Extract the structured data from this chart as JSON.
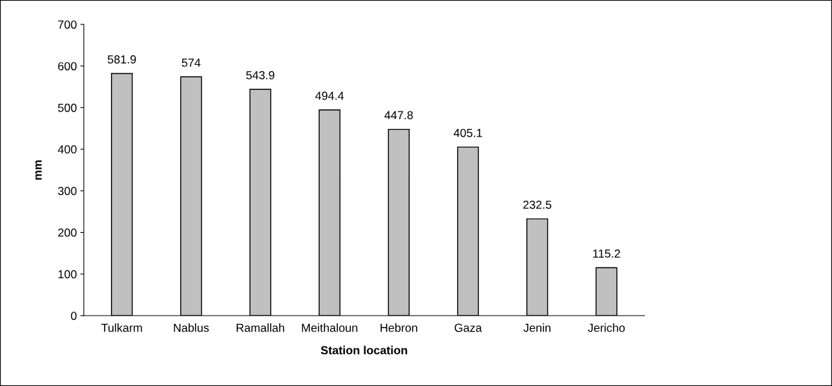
{
  "chart_data": {
    "type": "bar",
    "xlabel": "Station location",
    "ylabel": "mm",
    "categories": [
      "Tulkarm",
      "Nablus",
      "Ramallah",
      "Meithaloun",
      "Hebron",
      "Gaza",
      "Jenin",
      "Jericho"
    ],
    "values": [
      581.9,
      574,
      543.9,
      494.4,
      447.8,
      405.1,
      232.5,
      115.2
    ],
    "color": "#c0c0c0",
    "ylim": [
      0,
      700
    ],
    "yticks": [
      0,
      100,
      200,
      300,
      400,
      500,
      600,
      700
    ],
    "data_labels": true,
    "grid": false,
    "legend": false
  }
}
